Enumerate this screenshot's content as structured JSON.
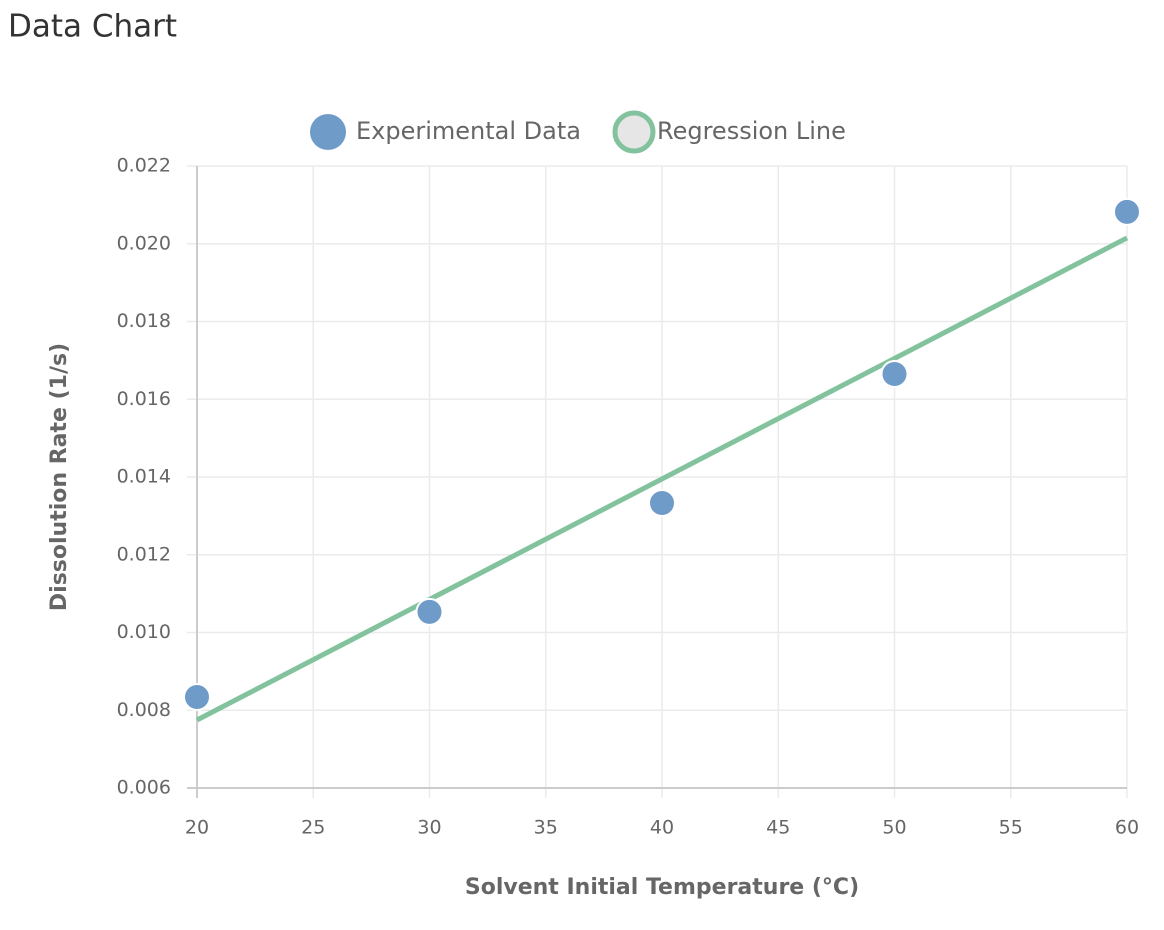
{
  "chart_data": {
    "type": "scatter",
    "title": "Data Chart",
    "x_label": "Solvent Initial Temperature (°C)",
    "y_label": "Dissolution Rate (1/s)",
    "xlim": [
      20,
      60
    ],
    "xticks": [
      20,
      25,
      30,
      35,
      40,
      45,
      50,
      55,
      60
    ],
    "ylim": [
      0.006,
      0.022
    ],
    "yticks": [
      0.006,
      0.008,
      {
        "value": 0.01,
        "label": "0.010"
      },
      0.012,
      0.014,
      0.016,
      0.018,
      {
        "value": 0.02,
        "label": "0.020"
      },
      0.022
    ],
    "grid": true,
    "legend": "top",
    "series": [
      {
        "name": "Experimental Data",
        "type": "scatter",
        "color": "#6f9bc8",
        "x": [
          20,
          30,
          40,
          50,
          60
        ],
        "values": [
          0.00834,
          0.01053,
          0.01333,
          0.01665,
          0.02082
        ]
      },
      {
        "name": "Regression Line",
        "type": "line",
        "color": "#82c39d",
        "x": [
          20,
          60
        ],
        "values": [
          0.00775,
          0.02015
        ]
      }
    ]
  }
}
